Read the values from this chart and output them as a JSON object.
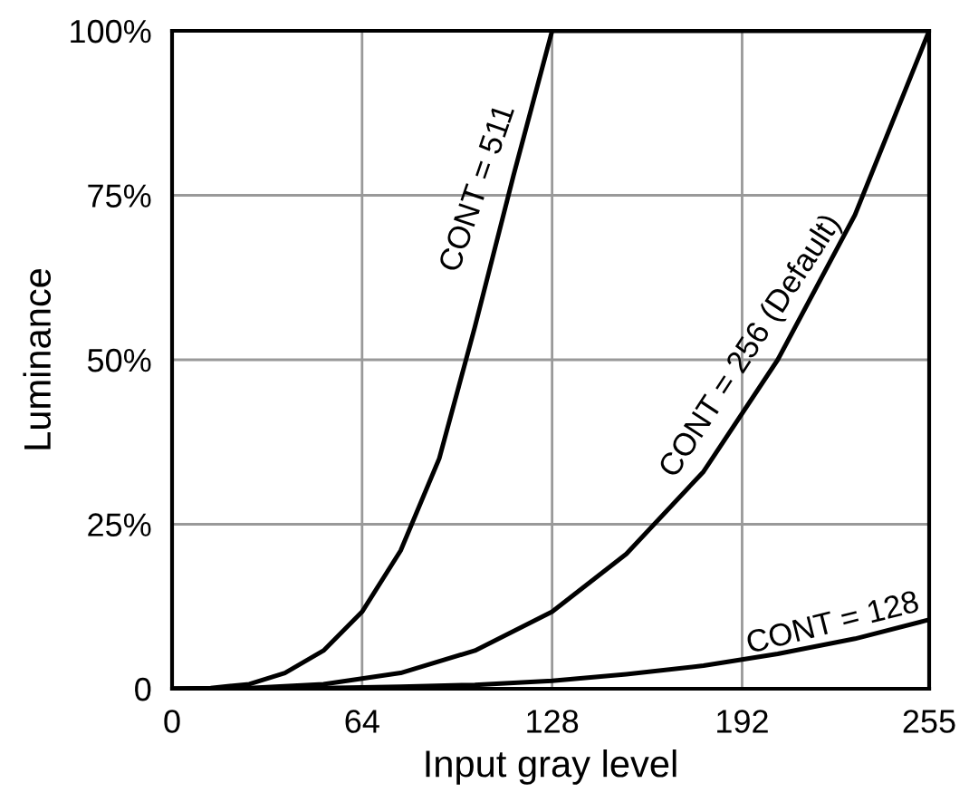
{
  "chart_data": {
    "type": "line",
    "xlabel": "Input gray level",
    "ylabel": "Luminance",
    "xlim": [
      0,
      255
    ],
    "xticks": [
      0,
      64,
      128,
      192,
      255
    ],
    "ylim": [
      0,
      100
    ],
    "yticks": [
      0,
      {
        "value": 25,
        "label": "25%"
      },
      {
        "value": 50,
        "label": "50%"
      },
      {
        "value": 75,
        "label": "75%"
      },
      {
        "value": 100,
        "label": "100%"
      }
    ],
    "grid": true,
    "marker": "none",
    "line_style": "solid",
    "series": [
      {
        "name": "CONT = 511",
        "color": "#000000",
        "x": [
          0,
          13,
          26,
          38,
          51,
          64,
          77,
          90,
          102,
          115,
          128,
          255
        ],
        "values": [
          0,
          0.1,
          0.7,
          2.4,
          5.8,
          11.7,
          21,
          35,
          55,
          78,
          100,
          100
        ]
      },
      {
        "name": "CONT = 256 (Default)",
        "color": "#000000",
        "x": [
          0,
          26,
          51,
          77,
          102,
          128,
          153,
          179,
          204,
          230,
          255
        ],
        "values": [
          0,
          0.1,
          0.7,
          2.4,
          5.8,
          11.7,
          20.5,
          33,
          50,
          72,
          100
        ]
      },
      {
        "name": "CONT = 128",
        "color": "#000000",
        "x": [
          0,
          26,
          51,
          77,
          102,
          128,
          153,
          179,
          204,
          230,
          255
        ],
        "values": [
          0,
          0,
          0.1,
          0.3,
          0.6,
          1.2,
          2.2,
          3.5,
          5.3,
          7.6,
          10.5
        ]
      }
    ]
  }
}
